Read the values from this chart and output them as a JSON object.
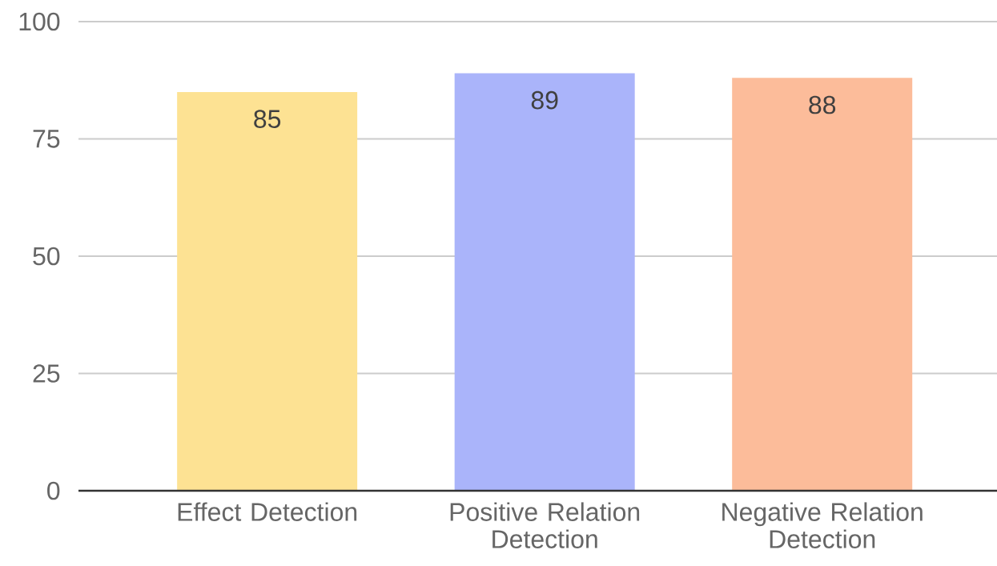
{
  "chart_data": {
    "type": "bar",
    "categories": [
      "Effect Detection",
      "Positive Relation Detection",
      "Negative Relation Detection"
    ],
    "values": [
      85,
      89,
      88
    ],
    "colors": [
      "#fde293",
      "#aab4fa",
      "#fcbc9a"
    ],
    "ylim": [
      0,
      100
    ],
    "yticks": [
      0,
      25,
      50,
      75,
      100
    ],
    "grid": "y",
    "data_labels": true
  }
}
